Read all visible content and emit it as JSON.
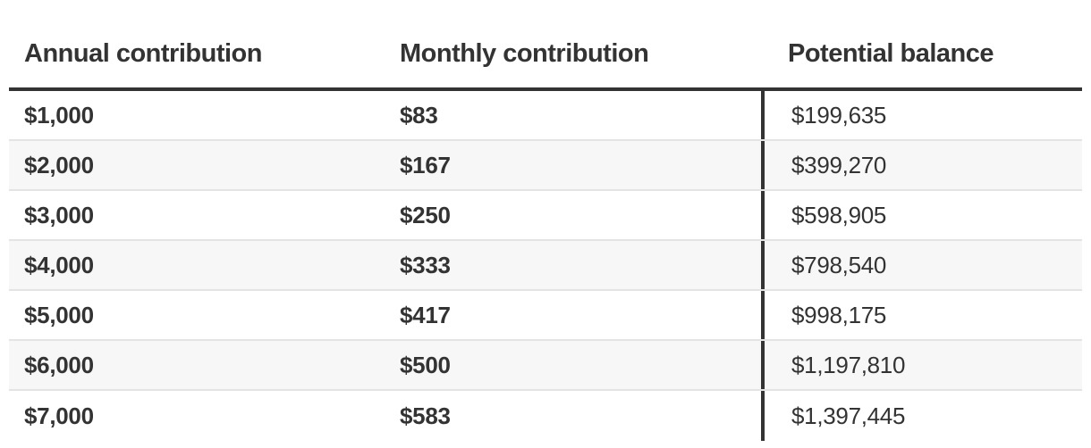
{
  "chart_data": {
    "type": "table",
    "columns": [
      "Annual contribution",
      "Monthly contribution",
      "Potential balance"
    ],
    "rows": [
      [
        "$1,000",
        "$83",
        "$199,635"
      ],
      [
        "$2,000",
        "$167",
        "$399,270"
      ],
      [
        "$3,000",
        "$250",
        "$598,905"
      ],
      [
        "$4,000",
        "$333",
        "$798,540"
      ],
      [
        "$5,000",
        "$417",
        "$998,175"
      ],
      [
        "$6,000",
        "$500",
        "$1,197,810"
      ],
      [
        "$7,000",
        "$583",
        "$1,397,445"
      ]
    ]
  },
  "colors": {
    "text": "#333333",
    "rule": "#333333",
    "row_alt": "#f7f7f7",
    "row_divider": "#e4e4e4"
  }
}
